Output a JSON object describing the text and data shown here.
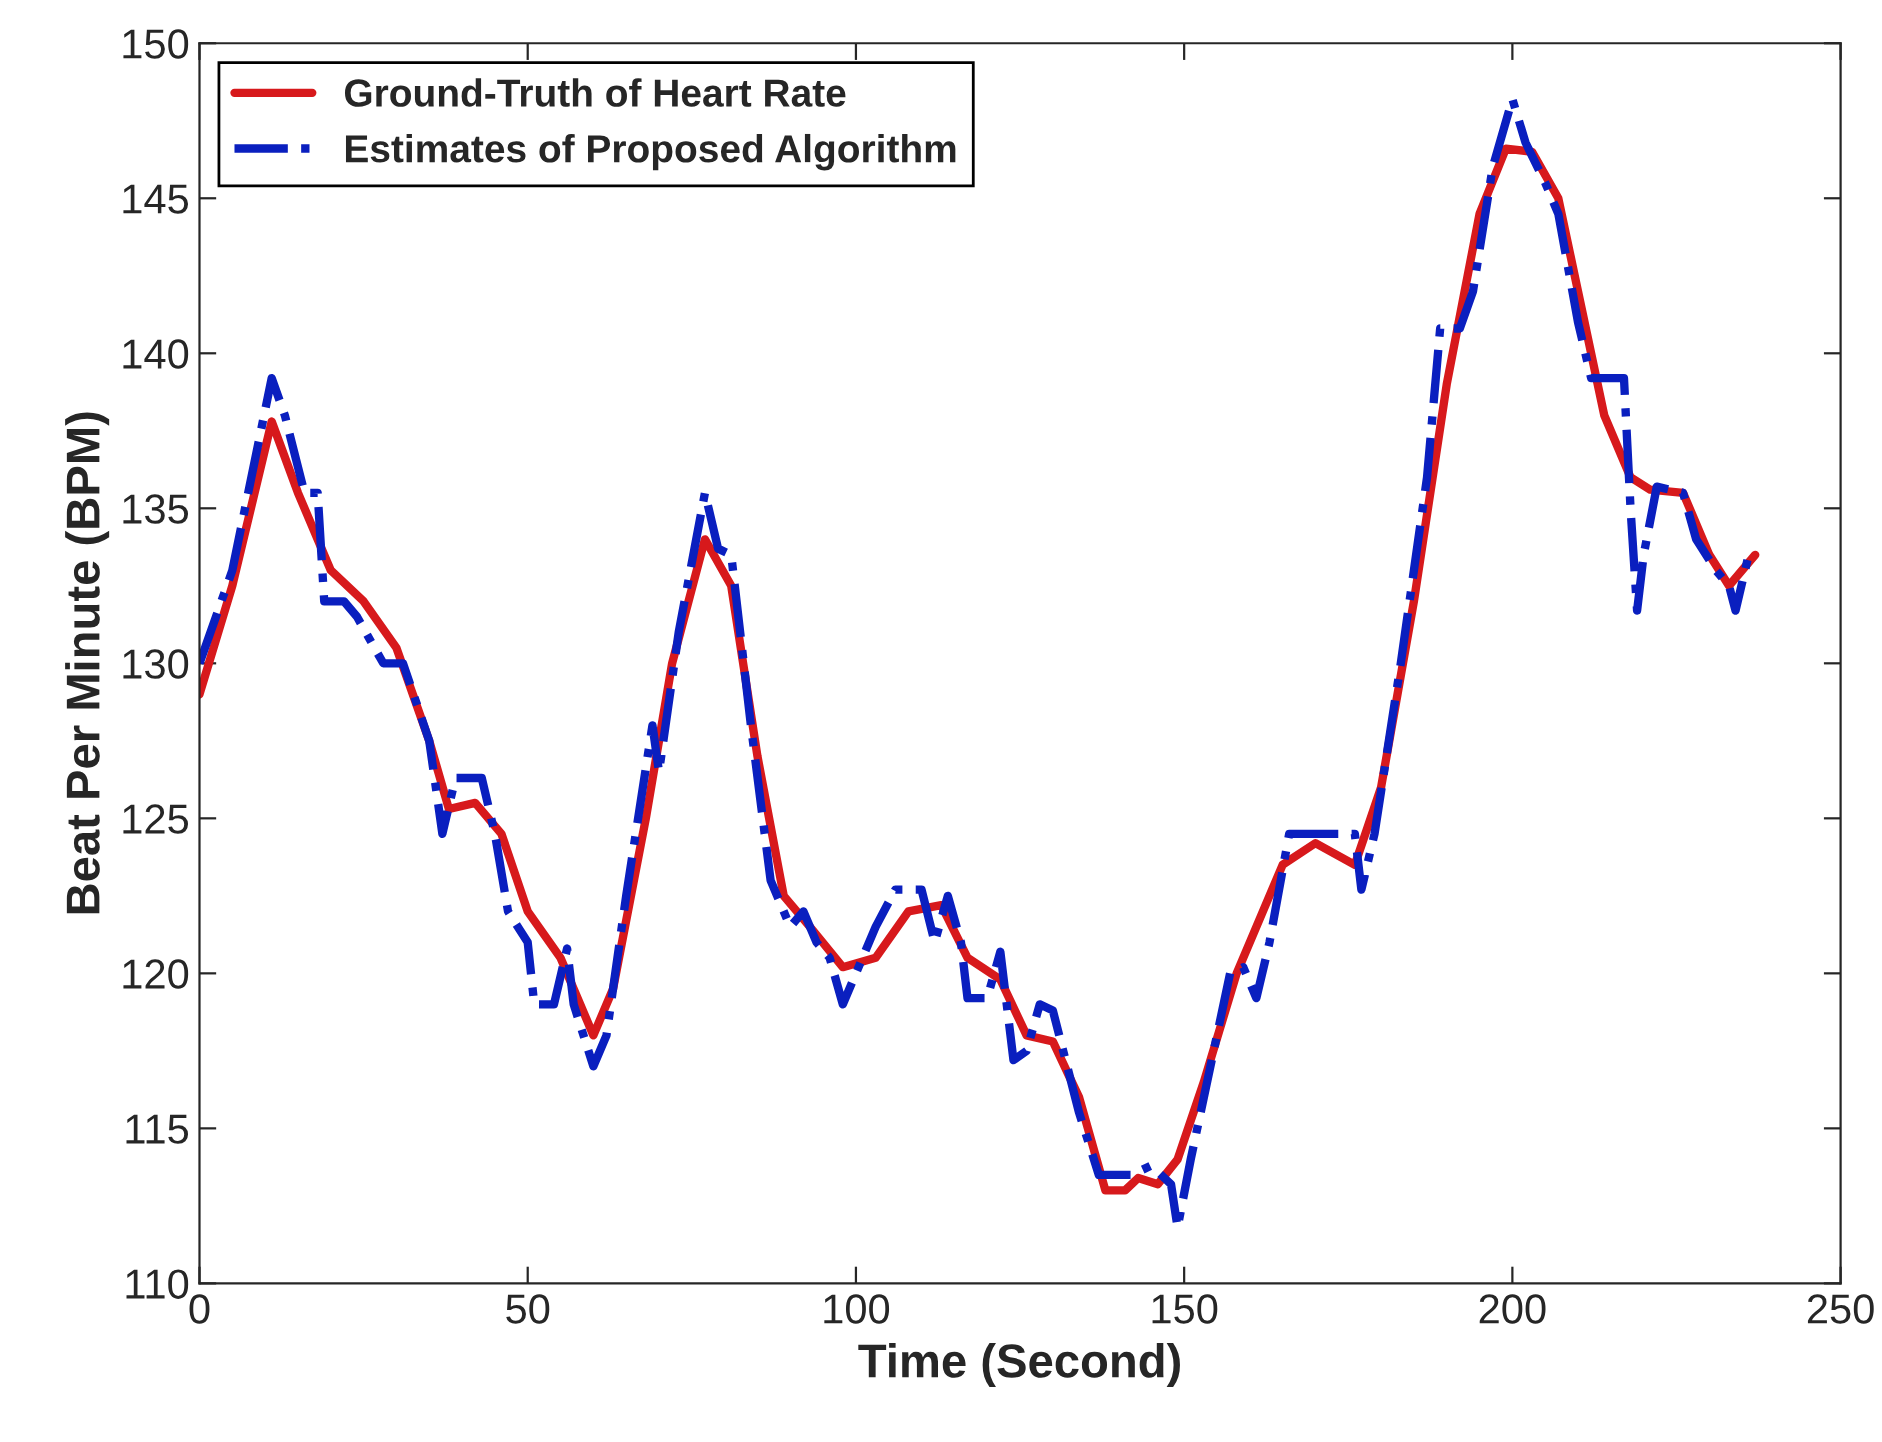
{
  "chart_data": {
    "type": "line",
    "xlabel": "Time (Second)",
    "ylabel": "Beat Per Minute (BPM)",
    "xlim": [
      0,
      250
    ],
    "xticks": [
      0,
      50,
      100,
      150,
      200,
      250
    ],
    "ylim": [
      110,
      150
    ],
    "yticks": [
      110,
      115,
      120,
      125,
      130,
      135,
      140,
      145,
      150
    ],
    "grid": false,
    "legend": "top left",
    "series": [
      {
        "name": "Ground-Truth of Heart Rate",
        "color": "#d7191c",
        "line_style": "solid",
        "x": [
          0,
          5,
          11,
          15,
          20,
          25,
          30,
          35,
          38,
          42,
          46,
          50,
          55,
          60,
          63,
          68,
          72,
          77,
          81,
          85,
          89,
          93,
          98,
          103,
          108,
          113,
          117,
          122,
          126,
          130,
          134,
          138,
          141,
          143,
          146,
          149,
          153,
          158,
          165,
          170,
          176,
          180,
          185,
          190,
          195,
          199,
          203,
          207,
          210,
          214,
          218,
          221,
          226,
          230,
          233,
          235,
          237
        ],
        "values": [
          129,
          132.5,
          137.8,
          135.5,
          133,
          132,
          130.5,
          127.5,
          125.3,
          125.5,
          124.5,
          122,
          120.5,
          118,
          119.5,
          125,
          130,
          134,
          132.5,
          127,
          122.5,
          121.5,
          120.2,
          120.5,
          122,
          122.2,
          120.5,
          119.8,
          118,
          117.8,
          116,
          113,
          113,
          113.4,
          113.2,
          114,
          116.5,
          120,
          123.5,
          124.2,
          123.5,
          126,
          132,
          139,
          144.5,
          146.6,
          146.5,
          145,
          142,
          138,
          136,
          135.6,
          135.5,
          133.5,
          132.5,
          133,
          133.5
        ]
      },
      {
        "name": "Estimates of Proposed Algorithm",
        "color": "#0a1fbf",
        "line_style": "dashdot",
        "x": [
          0,
          5,
          11,
          13,
          16,
          18,
          19,
          22,
          24,
          28,
          31,
          35,
          37,
          39,
          43,
          45,
          47,
          50,
          51,
          54,
          56,
          57,
          60,
          62,
          65,
          69,
          70,
          73,
          77,
          79,
          81,
          84,
          87,
          88,
          90,
          92,
          94,
          96,
          98,
          100,
          103,
          106,
          110,
          112,
          114,
          116,
          117,
          120,
          122,
          124,
          126,
          128,
          130,
          134,
          137,
          142,
          145,
          148,
          149,
          151,
          153,
          157,
          159,
          161,
          163,
          166,
          173,
          176,
          177,
          179,
          183,
          187,
          189,
          192,
          194,
          197,
          200,
          202,
          205,
          207,
          210,
          212,
          217,
          218,
          219,
          220,
          222,
          226,
          228,
          231,
          233,
          234,
          236
        ],
        "values": [
          130,
          133,
          139.2,
          138,
          135.5,
          135.5,
          132,
          132,
          131.5,
          130,
          130,
          127.5,
          124.5,
          126.3,
          126.3,
          124.5,
          122,
          121,
          119,
          119,
          120.8,
          119,
          117,
          118,
          122.5,
          128,
          126.5,
          131,
          135.5,
          133.7,
          133.5,
          128,
          123,
          122.5,
          121.5,
          122,
          121,
          120.5,
          119,
          120,
          121.5,
          122.7,
          122.7,
          121,
          122.5,
          121,
          119.2,
          119.2,
          120.7,
          117.2,
          117.5,
          119,
          118.8,
          115.5,
          113.5,
          113.5,
          113.8,
          113.2,
          111.8,
          114,
          116,
          120,
          120.2,
          119.2,
          121,
          124.5,
          124.5,
          124.5,
          122.7,
          124.5,
          130,
          136,
          140.8,
          140.8,
          142,
          146,
          148.2,
          146.8,
          145.5,
          144.5,
          141,
          139.2,
          139.2,
          135,
          131.7,
          133.5,
          135.7,
          135.5,
          134,
          133,
          132.5,
          131.7,
          133.5
        ]
      }
    ]
  }
}
